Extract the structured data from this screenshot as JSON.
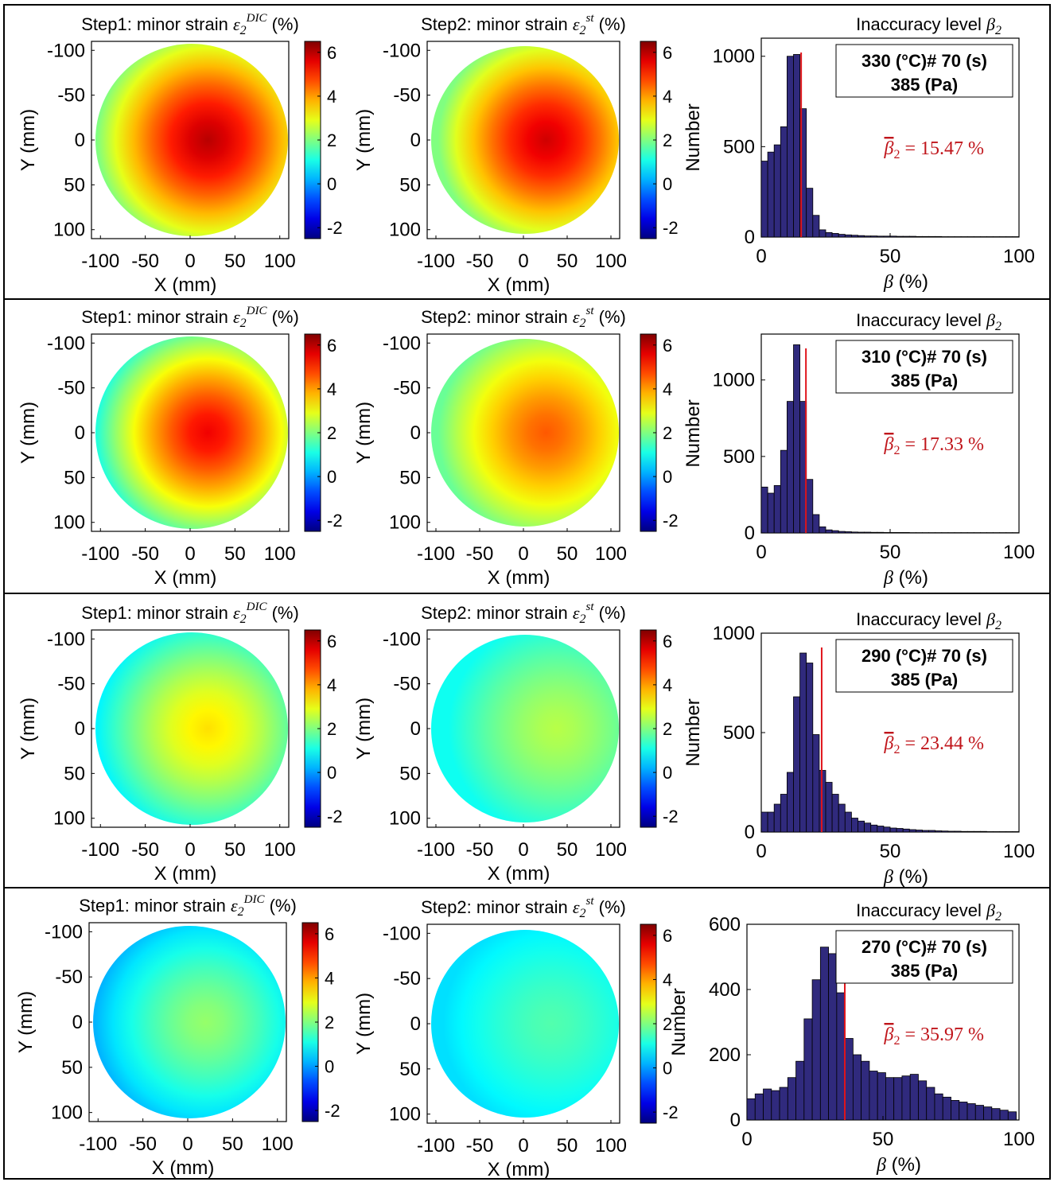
{
  "colors": {
    "bar_fill": "#302a7d",
    "median_line": "#e0141b",
    "median_text": "#c0151b",
    "colormap": "jet"
  },
  "labels": {
    "x_mm": "X (mm)",
    "y_mm": "Y (mm)",
    "number": "Number",
    "beta": "β (%)"
  },
  "rows": [
    {
      "dic_title": {
        "prefix": "Step1: minor strain ",
        "sym": "ε",
        "sub": "2",
        "sup": "DIC",
        "suffix": " (%)"
      },
      "st_title": {
        "prefix": "Step2: minor strain ",
        "sym": "ε",
        "sub": "2",
        "sup": "st",
        "suffix": " (%)"
      },
      "hist_title": {
        "text": "Inaccuracy level ",
        "sym": "β",
        "sub": "2"
      },
      "legend": {
        "line1": "330 (°C)# 70 (s)",
        "line2": "385 (Pa)"
      },
      "median": {
        "sym": "β",
        "sub": "2",
        "text": " = 15.47 %"
      },
      "map_x_ticks": [
        "-100",
        "-50",
        "0",
        "50",
        "100"
      ],
      "map_y_ticks": [
        "-100",
        "-50",
        "0",
        "50",
        "100"
      ],
      "colorbar_ticks": [
        "6",
        "4",
        "2",
        "0",
        "-2"
      ],
      "hist_x_ticks": [
        "0",
        "50",
        "100"
      ],
      "hist_y_ticks": [
        "0",
        "500",
        "1000"
      ]
    },
    {
      "dic_title": {
        "prefix": "Step1: minor strain ",
        "sym": "ε",
        "sub": "2",
        "sup": "DIC",
        "suffix": " (%)"
      },
      "st_title": {
        "prefix": "Step2: minor strain ",
        "sym": "ε",
        "sub": "2",
        "sup": "st",
        "suffix": " (%)"
      },
      "hist_title": {
        "text": "Inaccuracy level ",
        "sym": "β",
        "sub": "2"
      },
      "legend": {
        "line1": "310 (°C)# 70 (s)",
        "line2": "385 (Pa)"
      },
      "median": {
        "sym": "β",
        "sub": "2",
        "text": " = 17.33 %"
      },
      "map_x_ticks": [
        "-100",
        "-50",
        "0",
        "50",
        "100"
      ],
      "map_y_ticks": [
        "-100",
        "-50",
        "0",
        "50",
        "100"
      ],
      "colorbar_ticks": [
        "6",
        "4",
        "2",
        "0",
        "-2"
      ],
      "hist_x_ticks": [
        "0",
        "50",
        "100"
      ],
      "hist_y_ticks": [
        "0",
        "500",
        "1000"
      ]
    },
    {
      "dic_title": {
        "prefix": "Step1: minor strain ",
        "sym": "ε",
        "sub": "2",
        "sup": "DIC",
        "suffix": " (%)"
      },
      "st_title": {
        "prefix": "Step2: minor strain ",
        "sym": "ε",
        "sub": "2",
        "sup": "st",
        "suffix": " (%)"
      },
      "hist_title": {
        "text": "Inaccuracy level ",
        "sym": "β",
        "sub": "2"
      },
      "legend": {
        "line1": "290 (°C)# 70 (s)",
        "line2": "385 (Pa)"
      },
      "median": {
        "sym": "β",
        "sub": "2",
        "text": " = 23.44 %"
      },
      "map_x_ticks": [
        "-100",
        "-50",
        "0",
        "50",
        "100"
      ],
      "map_y_ticks": [
        "-100",
        "-50",
        "0",
        "50",
        "100"
      ],
      "colorbar_ticks": [
        "6",
        "4",
        "2",
        "0",
        "-2"
      ],
      "hist_x_ticks": [
        "0",
        "50",
        "100"
      ],
      "hist_y_ticks": [
        "0",
        "500",
        "1000"
      ]
    },
    {
      "dic_title": {
        "prefix": "Step1: minor strain ",
        "sym": "ε",
        "sub": "2",
        "sup": "DIC",
        "suffix": " (%)"
      },
      "st_title": {
        "prefix": "Step2: minor strain ",
        "sym": "ε",
        "sub": "2",
        "sup": "st",
        "suffix": " (%)"
      },
      "hist_title": {
        "text": "Inaccuracy level ",
        "sym": "β",
        "sub": "2"
      },
      "legend": {
        "line1": "270 (°C)# 70 (s)",
        "line2": "385 (Pa)"
      },
      "median": {
        "sym": "β",
        "sub": "2",
        "text": " = 35.97 %"
      },
      "map_x_ticks": [
        "-100",
        "-50",
        "0",
        "50",
        "100"
      ],
      "map_y_ticks": [
        "-100",
        "-50",
        "0",
        "50",
        "100"
      ],
      "colorbar_ticks": [
        "6",
        "4",
        "2",
        "0",
        "-2"
      ],
      "hist_x_ticks": [
        "0",
        "50",
        "100"
      ],
      "hist_y_ticks": [
        "0",
        "200",
        "400",
        "600"
      ]
    }
  ],
  "chart_data": [
    {
      "type": "heatmap",
      "row": 1,
      "panel": "Step1 DIC",
      "xlim": [
        -110,
        110
      ],
      "ylim": [
        -110,
        110
      ],
      "clim": [
        -2.5,
        6.5
      ],
      "center_value": 6.0,
      "edge_value": 2.0,
      "hot_spot_x": 30,
      "y_axis": "reversed"
    },
    {
      "type": "heatmap",
      "row": 1,
      "panel": "Step2 st",
      "xlim": [
        -110,
        110
      ],
      "ylim": [
        -110,
        110
      ],
      "clim": [
        -2.5,
        6.5
      ],
      "center_value": 5.8,
      "edge_value": 2.0,
      "hot_spot_x": 40,
      "y_axis": "reversed"
    },
    {
      "type": "bar",
      "row": 1,
      "panel": "histogram",
      "xlim": [
        0,
        100
      ],
      "ylim": [
        0,
        1100
      ],
      "bin_width": 2.5,
      "values": [
        420,
        470,
        510,
        610,
        1000,
        1010,
        710,
        270,
        120,
        40,
        25,
        20,
        15,
        12,
        10,
        8,
        6,
        6,
        5,
        5,
        5,
        4,
        4,
        4,
        3,
        3,
        3,
        3,
        2,
        2,
        2,
        2,
        2,
        2,
        2,
        2,
        2,
        2,
        2,
        2
      ],
      "median": 15.47
    },
    {
      "type": "heatmap",
      "row": 2,
      "panel": "Step1 DIC",
      "xlim": [
        -110,
        110
      ],
      "ylim": [
        -110,
        110
      ],
      "clim": [
        -2.5,
        6.5
      ],
      "center_value": 5.5,
      "edge_value": 1.2,
      "hot_spot_x": 30,
      "y_axis": "reversed"
    },
    {
      "type": "heatmap",
      "row": 2,
      "panel": "Step2 st",
      "xlim": [
        -110,
        110
      ],
      "ylim": [
        -110,
        110
      ],
      "clim": [
        -2.5,
        6.5
      ],
      "center_value": 4.6,
      "edge_value": 1.8,
      "hot_spot_x": 40,
      "y_axis": "reversed"
    },
    {
      "type": "bar",
      "row": 2,
      "panel": "histogram",
      "xlim": [
        0,
        100
      ],
      "ylim": [
        0,
        1300
      ],
      "bin_width": 2.5,
      "values": [
        300,
        260,
        310,
        540,
        860,
        1230,
        860,
        350,
        120,
        40,
        20,
        15,
        10,
        8,
        6,
        5,
        5,
        4,
        4,
        3,
        3,
        3,
        3,
        2,
        2,
        2,
        2,
        2,
        2,
        2,
        2,
        2,
        2,
        2,
        2,
        2,
        2,
        2,
        2,
        2
      ],
      "median": 17.33
    },
    {
      "type": "heatmap",
      "row": 3,
      "panel": "Step1 DIC",
      "xlim": [
        -110,
        110
      ],
      "ylim": [
        -110,
        110
      ],
      "clim": [
        -2.5,
        6.5
      ],
      "center_value": 3.4,
      "edge_value": 0.8,
      "hot_spot_x": 30,
      "y_axis": "reversed"
    },
    {
      "type": "heatmap",
      "row": 3,
      "panel": "Step2 st",
      "xlim": [
        -110,
        110
      ],
      "ylim": [
        -110,
        110
      ],
      "clim": [
        -2.5,
        6.5
      ],
      "center_value": 2.5,
      "edge_value": 1.0,
      "hot_spot_x": 60,
      "y_axis": "reversed"
    },
    {
      "type": "bar",
      "row": 3,
      "panel": "histogram",
      "xlim": [
        0,
        100
      ],
      "ylim": [
        0,
        1000
      ],
      "bin_width": 2.5,
      "values": [
        100,
        100,
        140,
        190,
        300,
        680,
        900,
        850,
        490,
        310,
        250,
        190,
        140,
        100,
        70,
        55,
        45,
        35,
        30,
        25,
        20,
        18,
        15,
        12,
        10,
        8,
        8,
        6,
        5,
        4,
        4,
        3,
        3,
        3,
        3,
        2,
        2,
        2,
        2,
        2
      ],
      "median": 23.44
    },
    {
      "type": "heatmap",
      "row": 4,
      "panel": "Step1 DIC",
      "xlim": [
        -110,
        110
      ],
      "ylim": [
        -110,
        110
      ],
      "clim": [
        -2.5,
        6.5
      ],
      "center_value": 2.2,
      "edge_value": 0.2,
      "hot_spot_x": 30,
      "y_axis": "reversed"
    },
    {
      "type": "heatmap",
      "row": 4,
      "panel": "Step2 st",
      "xlim": [
        -110,
        110
      ],
      "ylim": [
        -110,
        110
      ],
      "clim": [
        -2.5,
        6.5
      ],
      "center_value": 1.6,
      "edge_value": 0.6,
      "hot_spot_x": 50,
      "y_axis": "reversed"
    },
    {
      "type": "bar",
      "row": 4,
      "panel": "histogram",
      "xlim": [
        0,
        100
      ],
      "ylim": [
        0,
        600
      ],
      "bin_width": 3,
      "values": [
        65,
        80,
        95,
        90,
        100,
        130,
        180,
        310,
        430,
        530,
        510,
        390,
        250,
        200,
        180,
        150,
        145,
        130,
        130,
        135,
        140,
        120,
        100,
        80,
        70,
        60,
        55,
        50,
        45,
        40,
        35,
        30,
        25
      ],
      "median": 35.97
    }
  ]
}
